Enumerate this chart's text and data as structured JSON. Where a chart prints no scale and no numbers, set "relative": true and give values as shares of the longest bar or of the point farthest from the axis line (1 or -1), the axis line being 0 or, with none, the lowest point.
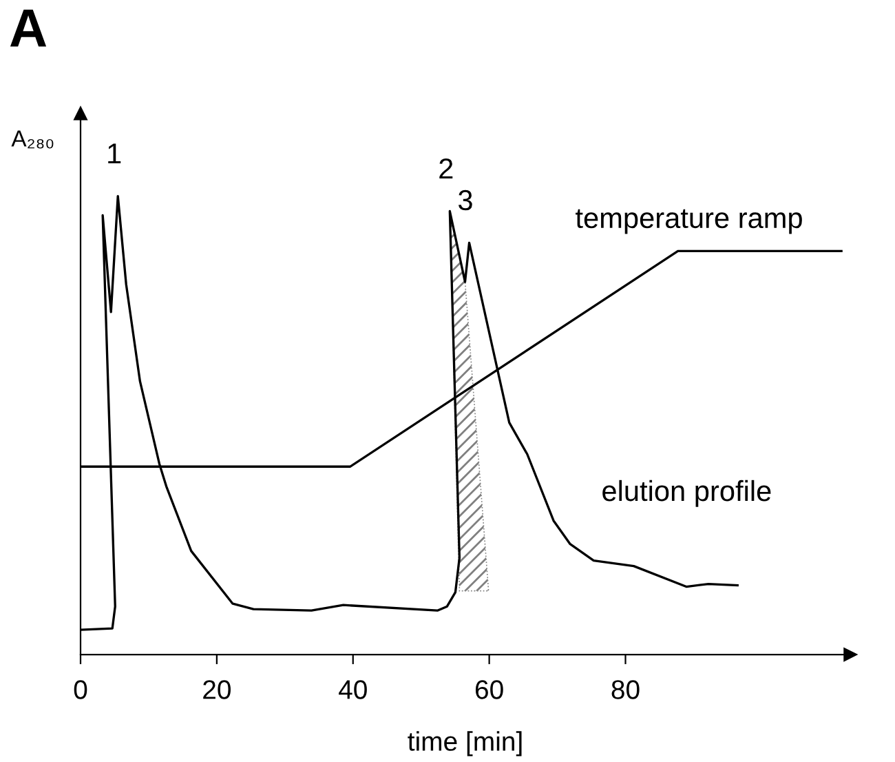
{
  "chart_data": {
    "type": "line",
    "title": "A",
    "xlabel": "time [min]",
    "ylabel": "A₂₈₀",
    "relative": true,
    "xlim": [
      0,
      113
    ],
    "xticks": [
      0,
      20,
      40,
      60,
      80
    ],
    "grid": false,
    "legend": false,
    "marker": "none",
    "line_style": "solid",
    "series": [
      {
        "name": "elution profile",
        "color": "#000000",
        "x": [
          0,
          4.67,
          5.08,
          3.25,
          4.47,
          5.48,
          6.7,
          8.73,
          11.57,
          12.59,
          16.24,
          22.34,
          25.38,
          33.9,
          38.58,
          52.39,
          53.81,
          55.03,
          55.63,
          54.21,
          56.45,
          57.06,
          62.94,
          65.58,
          69.44,
          71.88,
          75.33,
          81.22,
          88.93,
          92.18,
          96.45
        ],
        "values": [
          0.054,
          0.057,
          0.105,
          0.958,
          0.747,
          1.0,
          0.807,
          0.596,
          0.416,
          0.367,
          0.226,
          0.111,
          0.099,
          0.096,
          0.108,
          0.096,
          0.105,
          0.136,
          0.211,
          0.967,
          0.813,
          0.898,
          0.506,
          0.437,
          0.292,
          0.241,
          0.205,
          0.193,
          0.148,
          0.154,
          0.151
        ]
      },
      {
        "name": "temperature ramp",
        "color": "#000000",
        "x": [
          0,
          39.6,
          87.7,
          111.7
        ],
        "values": [
          0.41,
          0.41,
          0.88,
          0.88
        ]
      },
      {
        "type": "area",
        "color": "#808080",
        "x": [
          54.21,
          56.45,
          59.9,
          55.63
        ],
        "values": [
          0.967,
          0.813,
          0.139,
          0.139
        ]
      }
    ],
    "annotations": [
      {
        "text": "1",
        "x": 5.48,
        "y": 1.0
      },
      {
        "text": "2",
        "x": 54.21,
        "y": 0.967
      },
      {
        "text": "3",
        "x": 57.06,
        "y": 0.898
      }
    ]
  }
}
